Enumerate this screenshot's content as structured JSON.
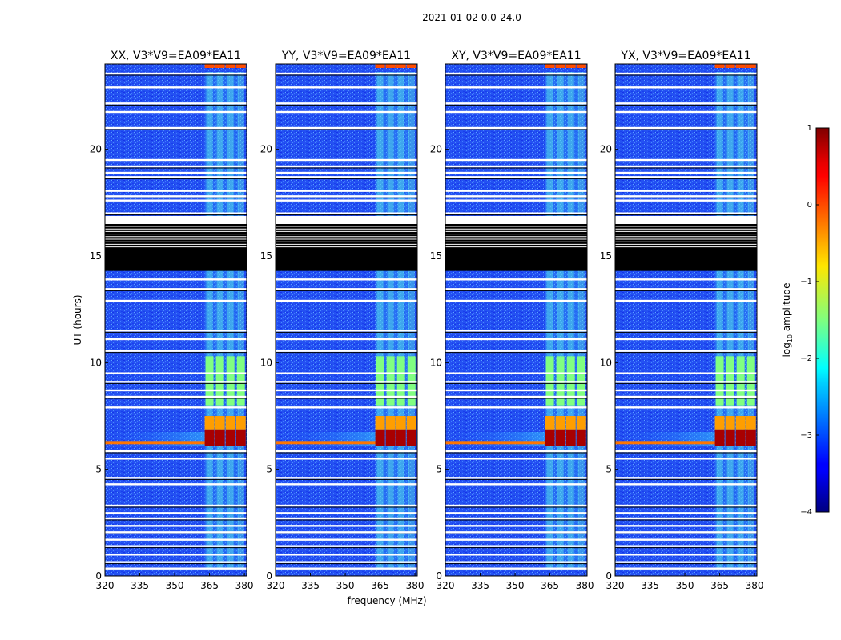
{
  "figure_title": "2021-01-02 0.0-24.0",
  "chart_data": {
    "type": "heatmap",
    "title": "2021-01-02 0.0-24.0",
    "xlabel": "frequency (MHz)",
    "ylabel": "UT (hours)",
    "xlim": [
      320,
      381
    ],
    "ylim": [
      0,
      24
    ],
    "xticks": [
      320,
      335,
      350,
      365,
      380
    ],
    "yticks": [
      0,
      5,
      10,
      15,
      20
    ],
    "panels": [
      {
        "title": "XX, V3*V9=EA09*EA11",
        "polarization": "XX"
      },
      {
        "title": "YY, V3*V9=EA09*EA11",
        "polarization": "YY"
      },
      {
        "title": "XY, V3*V9=EA09*EA11",
        "polarization": "XY"
      },
      {
        "title": "YX, V3*V9=EA09*EA11",
        "polarization": "YX"
      }
    ],
    "colorbar": {
      "label_prefix": "log",
      "label_sub": "10",
      "label_suffix": " amplitude",
      "range": [
        -4,
        1
      ],
      "ticks": [
        1,
        0,
        -1,
        -2,
        -3,
        -4
      ],
      "tick_labels": [
        "1",
        "0",
        "−1",
        "−2",
        "−3",
        "−4"
      ],
      "colormap": "jet"
    },
    "features": {
      "background_log_amplitude": -3.4,
      "rfi_band_mhz": [
        363,
        381
      ],
      "rfi_channels_mhz": [
        365,
        369.5,
        374,
        378.5
      ],
      "flagged_block_ut": [
        14.3,
        16.5
      ],
      "strong_event_ut": [
        6.1,
        7.5
      ],
      "strong_event_log_amplitude": 0.8,
      "moderate_event_ut": [
        8.0,
        10.3
      ]
    },
    "flagged_rows_ut": [
      23.55,
      22.9,
      22.15,
      21.75,
      21.0,
      19.5,
      19.2,
      18.9,
      18.7,
      18.05,
      17.8,
      17.6,
      17.0,
      13.9,
      13.45,
      12.9,
      11.5,
      11.1,
      10.55,
      9.5,
      9.1,
      8.7,
      8.4,
      7.9,
      5.85,
      5.5,
      4.6,
      4.3,
      3.3,
      2.95,
      2.7,
      2.35,
      2.05,
      1.7,
      1.4,
      1.0,
      0.65,
      0.35
    ]
  }
}
